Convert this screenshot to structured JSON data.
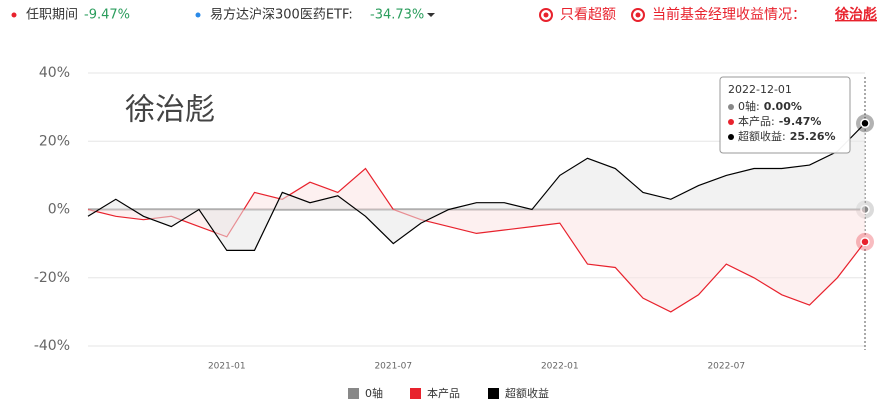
{
  "header": {
    "period_label": "任职期间",
    "period_value": "-9.47%",
    "fund_label": "易方达沪深300医药ETF:",
    "fund_value": "-34.73%",
    "excess_only": "只看超额",
    "manager_return": "当前基金经理收益情况：",
    "manager_name": "徐治彪"
  },
  "chart_data": {
    "type": "line",
    "watermark": "徐治彪",
    "x": [
      "2020-08",
      "2020-09",
      "2020-10",
      "2020-11",
      "2020-12",
      "2021-01",
      "2021-02",
      "2021-03",
      "2021-04",
      "2021-05",
      "2021-06",
      "2021-07",
      "2021-08",
      "2021-09",
      "2021-10",
      "2021-11",
      "2021-12",
      "2022-01",
      "2022-02",
      "2022-03",
      "2022-04",
      "2022-05",
      "2022-06",
      "2022-07",
      "2022-08",
      "2022-09",
      "2022-10",
      "2022-11",
      "2022-12"
    ],
    "xticks": [
      "2021-01",
      "2021-07",
      "2022-01",
      "2022-07"
    ],
    "ylim": [
      -40,
      40
    ],
    "yticks": [
      {
        "value": 40,
        "label": "40%"
      },
      {
        "value": 20,
        "label": "20%"
      },
      {
        "value": 0,
        "label": "0%"
      },
      {
        "value": -20,
        "label": "-20%"
      },
      {
        "value": -40,
        "label": "-40%"
      }
    ],
    "grid": true,
    "series": [
      {
        "name": "0轴",
        "color": "#888888",
        "values": [
          0,
          0,
          0,
          0,
          0,
          0,
          0,
          0,
          0,
          0,
          0,
          0,
          0,
          0,
          0,
          0,
          0,
          0,
          0,
          0,
          0,
          0,
          0,
          0,
          0,
          0,
          0,
          0,
          0
        ]
      },
      {
        "name": "本产品",
        "color": "#e8222d",
        "values": [
          0,
          -2,
          -3,
          -2,
          -5,
          -8,
          5,
          3,
          8,
          5,
          12,
          0,
          -3,
          -5,
          -7,
          -6,
          -5,
          -4,
          -16,
          -17,
          -26,
          -30,
          -25,
          -16,
          -20,
          -25,
          -28,
          -20,
          -9.47
        ]
      },
      {
        "name": "超额收益",
        "color": "#000000",
        "values": [
          -2,
          3,
          -2,
          -5,
          0,
          -12,
          -12,
          5,
          2,
          4,
          -2,
          -10,
          -4,
          0,
          2,
          2,
          0,
          10,
          15,
          12,
          5,
          3,
          7,
          10,
          12,
          12,
          13,
          17,
          25.26
        ]
      }
    ],
    "tooltip": {
      "date": "2022-12-01",
      "items": [
        {
          "label": "0轴:",
          "value": "0.00%"
        },
        {
          "label": "本产品:",
          "value": "-9.47%"
        },
        {
          "label": "超额收益:",
          "value": "25.26%"
        }
      ]
    }
  }
}
